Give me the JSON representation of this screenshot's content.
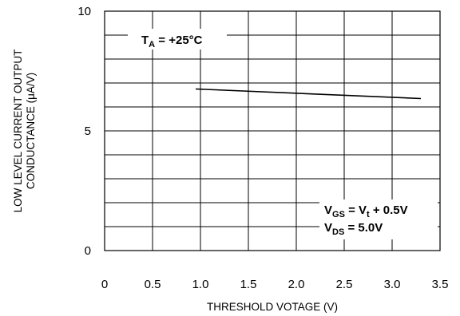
{
  "chart_data": {
    "type": "line",
    "xlabel": "THRESHOLD VOTAGE (V)",
    "ylabel_line1": "LOW LEVEL CURRENT OUTPUT",
    "ylabel_line2": "CONDUCTANCE (μA/V)",
    "xlim": [
      0,
      3.5
    ],
    "ylim": [
      0,
      10
    ],
    "x_ticks": [
      "0",
      "0.5",
      "1.0",
      "1.5",
      "2.0",
      "2.5",
      "3.0",
      "3.5"
    ],
    "y_ticks": [
      "0",
      "5",
      "10"
    ],
    "grid": true,
    "series": [
      {
        "x": [
          0.95,
          3.3
        ],
        "y": [
          6.75,
          6.35
        ]
      }
    ],
    "annotations": {
      "temp_main": "T",
      "temp_sub": "A",
      "temp_value": " = +25°C",
      "vgs_main": "V",
      "vgs_sub": "GS",
      "vgs_mid": " = V",
      "vgs_sub2": "t",
      "vgs_value": " + 0.5V",
      "vds_main": "V",
      "vds_sub": "DS",
      "vds_value": " = 5.0V"
    },
    "colors": {
      "line": "#000000",
      "grid": "#000000"
    }
  }
}
